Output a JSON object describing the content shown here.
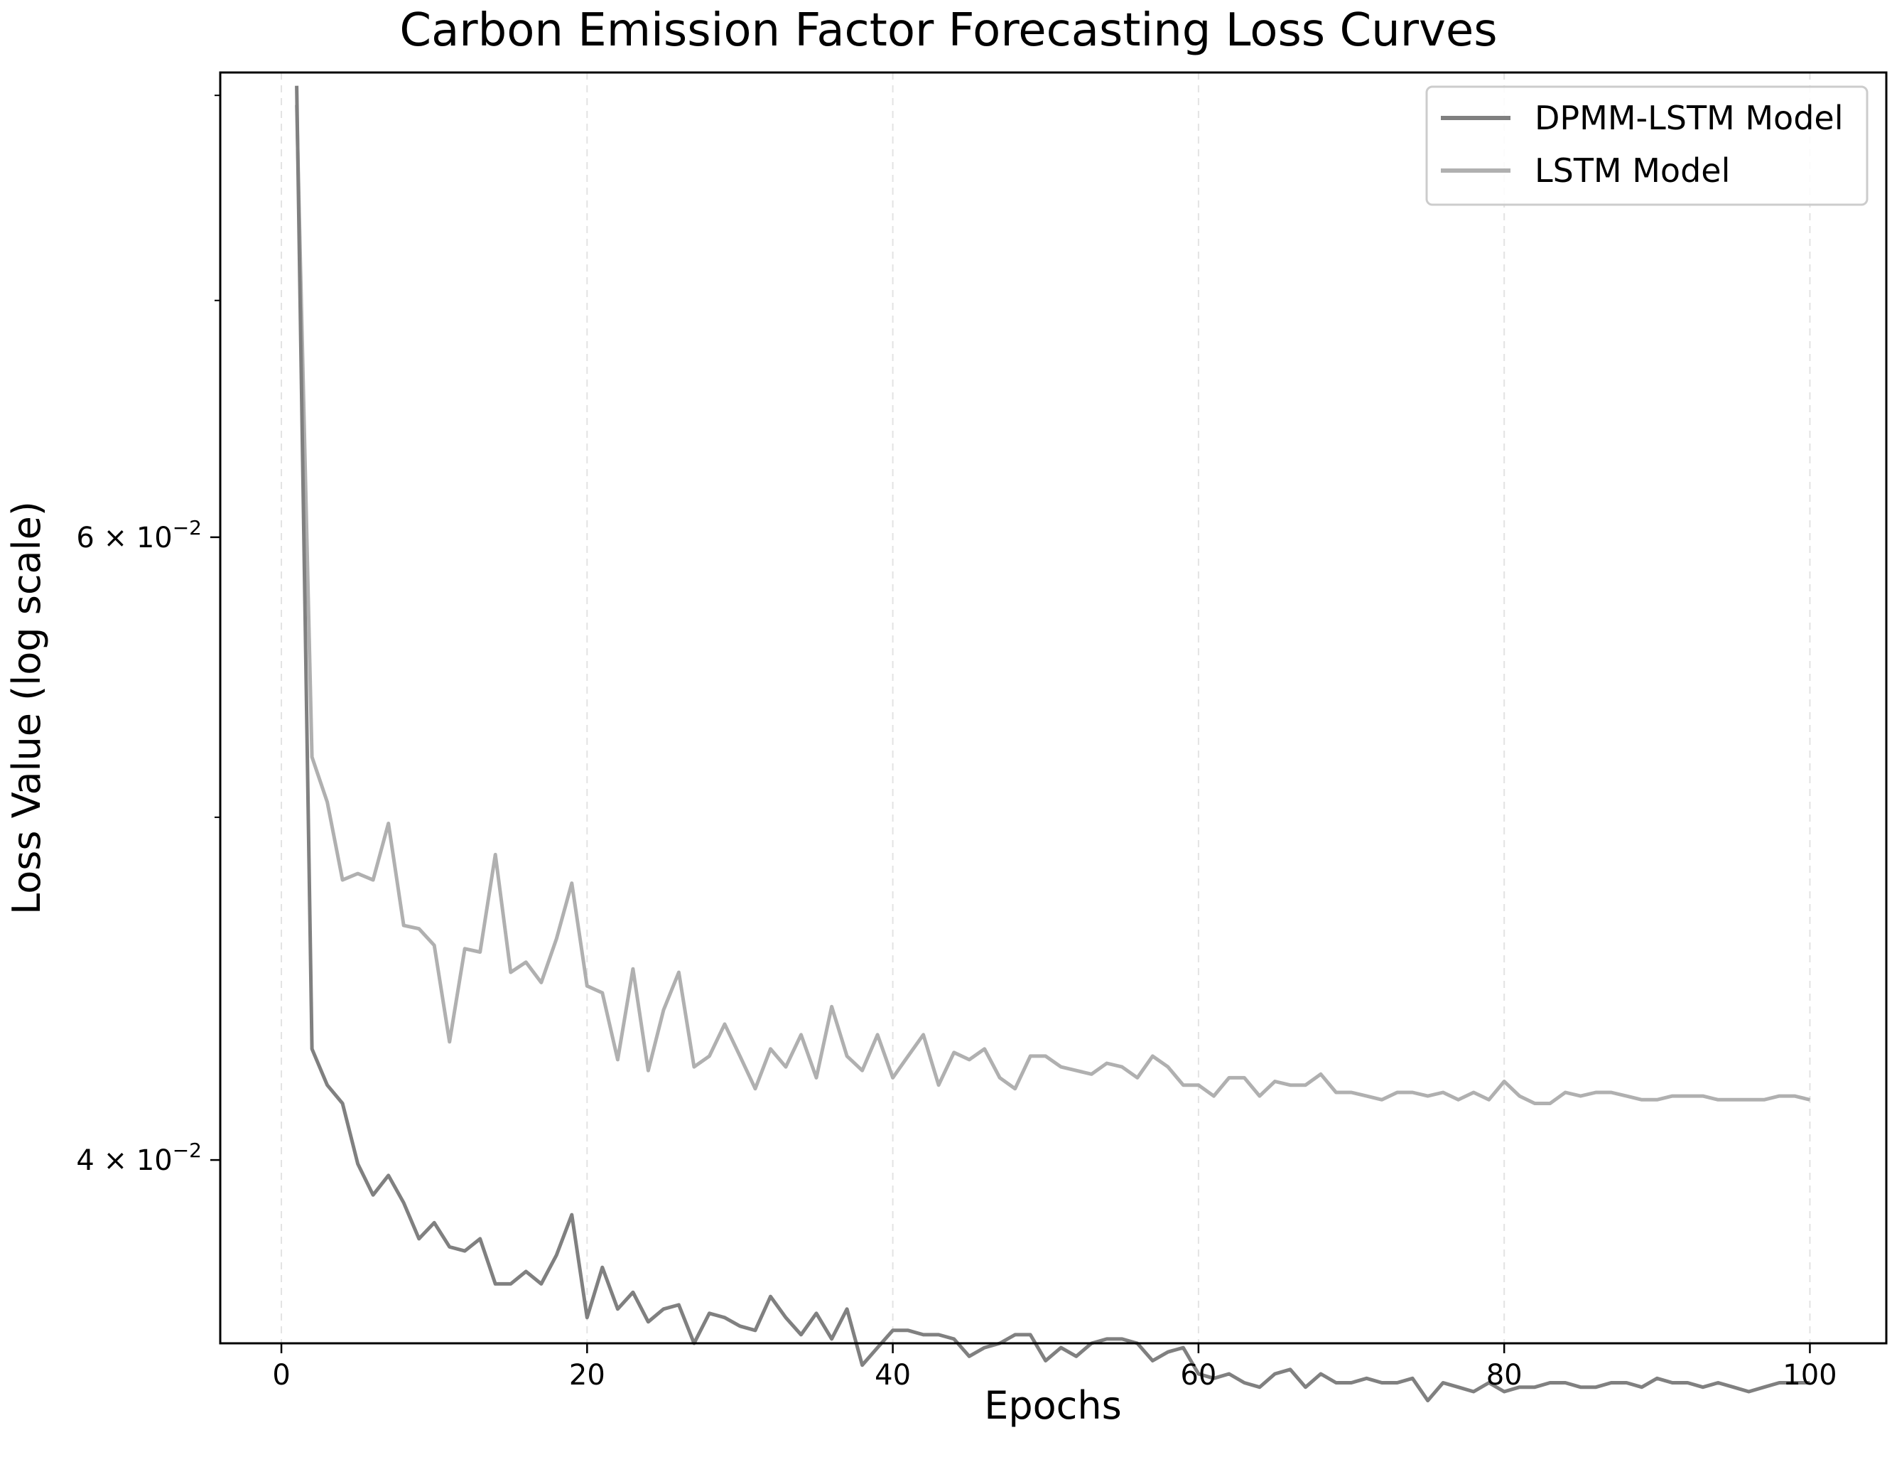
{
  "chart_data": {
    "type": "line",
    "title": "Carbon Emission Factor Forecasting Loss Curves",
    "xlabel": "Epochs",
    "ylabel": "Loss Value (log scale)",
    "xlim": [
      -4,
      105
    ],
    "ylim": [
      0.0355,
      0.0812
    ],
    "yscale": "log",
    "grid": "x-dashed",
    "legend_placement": "top-right",
    "x_ticks": [
      {
        "value": 0,
        "label": "0"
      },
      {
        "value": 20,
        "label": "20"
      },
      {
        "value": 40,
        "label": "40"
      },
      {
        "value": 60,
        "label": "60"
      },
      {
        "value": 80,
        "label": "80"
      },
      {
        "value": 100,
        "label": "100"
      }
    ],
    "y_major_ticks": [
      {
        "value": 0.04,
        "mantissa": "4",
        "base": "10",
        "exponent": "−2"
      },
      {
        "value": 0.06,
        "mantissa": "6",
        "base": "10",
        "exponent": "−2"
      }
    ],
    "y_minor_ticks": [
      0.05,
      0.07,
      0.08
    ],
    "x": [
      1,
      2,
      3,
      4,
      5,
      6,
      7,
      8,
      9,
      10,
      11,
      12,
      13,
      14,
      15,
      16,
      17,
      18,
      19,
      20,
      21,
      22,
      23,
      24,
      25,
      26,
      27,
      28,
      29,
      30,
      31,
      32,
      33,
      34,
      35,
      36,
      37,
      38,
      39,
      40,
      41,
      42,
      43,
      44,
      45,
      46,
      47,
      48,
      49,
      50,
      51,
      52,
      53,
      54,
      55,
      56,
      57,
      58,
      59,
      60,
      61,
      62,
      63,
      64,
      65,
      66,
      67,
      68,
      69,
      70,
      71,
      72,
      73,
      74,
      75,
      76,
      77,
      78,
      79,
      80,
      81,
      82,
      83,
      84,
      85,
      86,
      87,
      88,
      89,
      90,
      91,
      92,
      93,
      94,
      95,
      96,
      97,
      98,
      99,
      100
    ],
    "series": [
      {
        "name": "DPMM-LSTM Model",
        "color": "#808080",
        "values": [
          0.0805,
          0.043,
          0.042,
          0.0415,
          0.0399,
          0.0391,
          0.0396,
          0.0389,
          0.038,
          0.0384,
          0.0378,
          0.0377,
          0.038,
          0.0369,
          0.0369,
          0.0372,
          0.0369,
          0.0376,
          0.0386,
          0.0361,
          0.0373,
          0.0363,
          0.0367,
          0.036,
          0.0363,
          0.0364,
          0.0355,
          0.0362,
          0.0361,
          0.0359,
          0.0358,
          0.0366,
          0.0361,
          0.0357,
          0.0362,
          0.0356,
          0.0363,
          0.035,
          0.0354,
          0.0358,
          0.0358,
          0.0357,
          0.0357,
          0.0356,
          0.0352,
          0.0354,
          0.0355,
          0.0357,
          0.0357,
          0.0351,
          0.0354,
          0.0352,
          0.0355,
          0.0356,
          0.0356,
          0.0355,
          0.0351,
          0.0353,
          0.0354,
          0.0348,
          0.0347,
          0.0348,
          0.0346,
          0.0345,
          0.0348,
          0.0349,
          0.0345,
          0.0348,
          0.0346,
          0.0346,
          0.0347,
          0.0346,
          0.0346,
          0.0347,
          0.0342,
          0.0346,
          0.0345,
          0.0344,
          0.0346,
          0.0344,
          0.0345,
          0.0345,
          0.0346,
          0.0346,
          0.0345,
          0.0345,
          0.0346,
          0.0346,
          0.0345,
          0.0347,
          0.0346,
          0.0346,
          0.0345,
          0.0346,
          0.0345,
          0.0344,
          0.0345,
          0.0346,
          0.0346,
          0.0346
        ]
      },
      {
        "name": "LSTM Model",
        "color": "#b0b0b0",
        "values": [
          0.0795,
          0.052,
          0.0505,
          0.048,
          0.0482,
          0.048,
          0.0498,
          0.0466,
          0.0465,
          0.046,
          0.0432,
          0.0459,
          0.0458,
          0.0488,
          0.0452,
          0.0455,
          0.0449,
          0.0462,
          0.0479,
          0.0448,
          0.0446,
          0.0427,
          0.0453,
          0.0424,
          0.0441,
          0.0452,
          0.0425,
          0.0428,
          0.0437,
          0.0428,
          0.0419,
          0.043,
          0.0425,
          0.0434,
          0.0422,
          0.0442,
          0.0428,
          0.0424,
          0.0434,
          0.0422,
          0.0428,
          0.0434,
          0.042,
          0.0429,
          0.0427,
          0.043,
          0.0422,
          0.0419,
          0.0428,
          0.0428,
          0.0425,
          0.0424,
          0.0423,
          0.0426,
          0.0425,
          0.0422,
          0.0428,
          0.0425,
          0.042,
          0.042,
          0.0417,
          0.0422,
          0.0422,
          0.0417,
          0.0421,
          0.042,
          0.042,
          0.0423,
          0.0418,
          0.0418,
          0.0417,
          0.0416,
          0.0418,
          0.0418,
          0.0417,
          0.0418,
          0.0416,
          0.0418,
          0.0416,
          0.0421,
          0.0417,
          0.0415,
          0.0415,
          0.0418,
          0.0417,
          0.0418,
          0.0418,
          0.0417,
          0.0416,
          0.0416,
          0.0417,
          0.0417,
          0.0417,
          0.0416,
          0.0416,
          0.0416,
          0.0416,
          0.0417,
          0.0417,
          0.0416
        ]
      }
    ]
  }
}
